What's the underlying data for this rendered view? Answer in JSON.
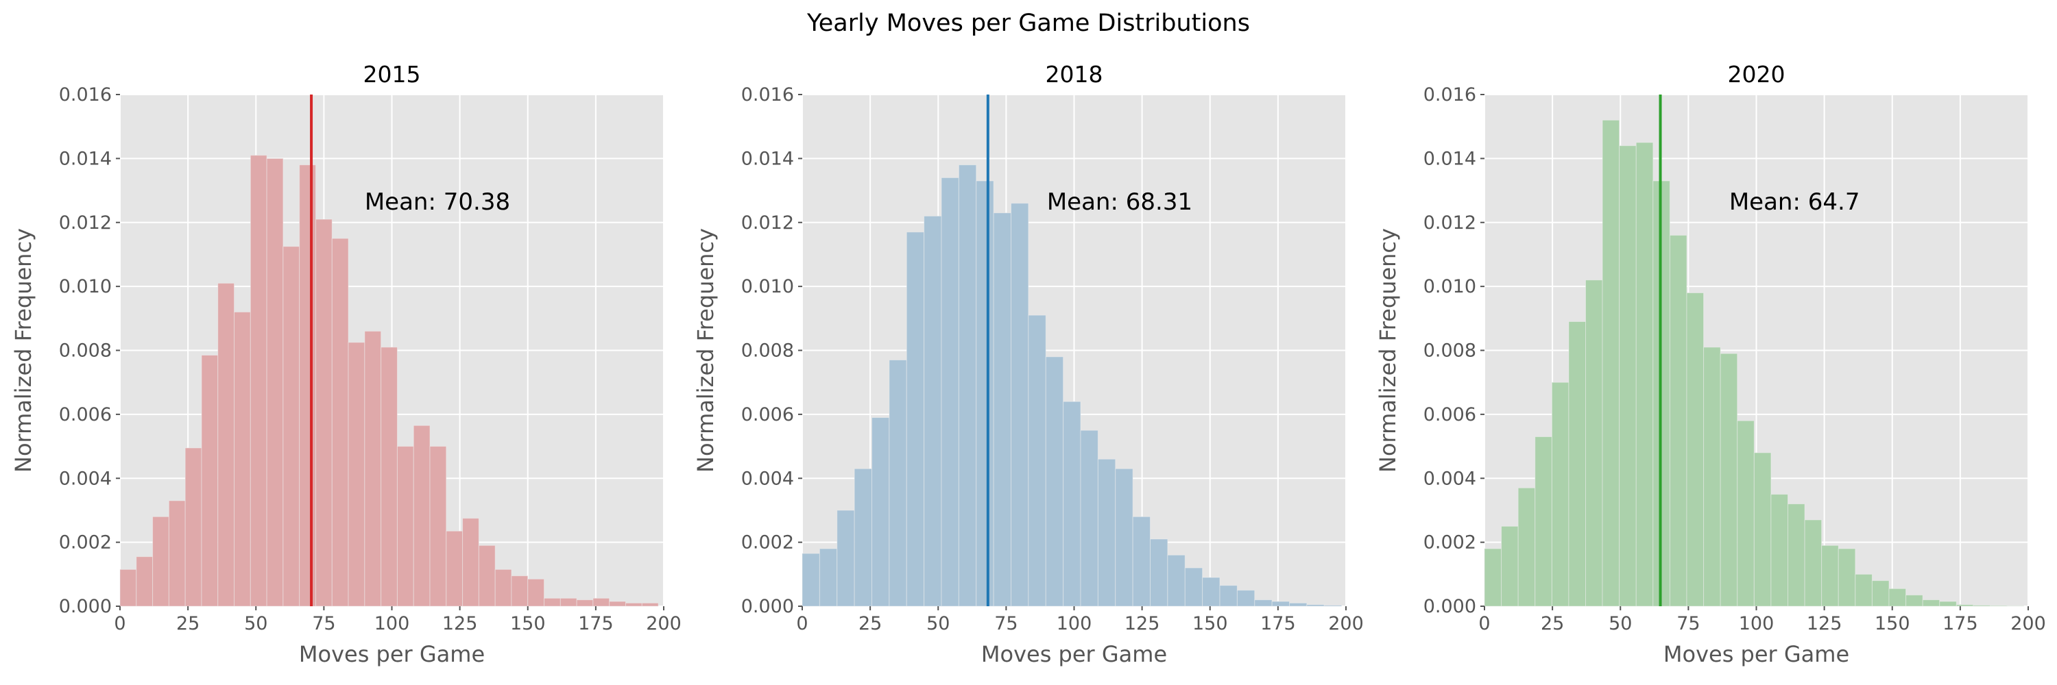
{
  "figure": {
    "title": "Yearly Moves per Game Distributions"
  },
  "chart_data": [
    {
      "type": "bar",
      "title": "2015",
      "xlabel": "Moves per Game",
      "ylabel": "Normalized Frequency",
      "xlim": [
        0,
        200
      ],
      "ylim": [
        0,
        0.016
      ],
      "xticks": [
        "0",
        "25",
        "50",
        "75",
        "100",
        "125",
        "150",
        "175",
        "200"
      ],
      "yticks": [
        "0.000",
        "0.002",
        "0.004",
        "0.006",
        "0.008",
        "0.010",
        "0.012",
        "0.014",
        "0.016"
      ],
      "grid": true,
      "bin_width": 6,
      "bin_starts": [
        0,
        6,
        12,
        18,
        24,
        30,
        36,
        42,
        48,
        54,
        60,
        66,
        72,
        78,
        84,
        90,
        96,
        102,
        108,
        114,
        120,
        126,
        132,
        138,
        144,
        150,
        156,
        162,
        168,
        174,
        180,
        186,
        192
      ],
      "values": [
        0.00115,
        0.00155,
        0.0028,
        0.0033,
        0.00495,
        0.00785,
        0.0101,
        0.0092,
        0.0141,
        0.014,
        0.01125,
        0.0138,
        0.0121,
        0.0115,
        0.00825,
        0.0086,
        0.0081,
        0.005,
        0.00565,
        0.005,
        0.00235,
        0.00275,
        0.0019,
        0.00115,
        0.00095,
        0.00085,
        0.00025,
        0.00025,
        0.0002,
        0.00025,
        0.00015,
        0.0001,
        0.0001
      ],
      "mean": 70.38,
      "mean_label": "Mean: 70.38",
      "bar_color": "#dfa9aa",
      "line_color": "#d62728"
    },
    {
      "type": "bar",
      "title": "2018",
      "xlabel": "Moves per Game",
      "ylabel": "Normalized Frequency",
      "xlim": [
        0,
        200
      ],
      "ylim": [
        0,
        0.016
      ],
      "xticks": [
        "0",
        "25",
        "50",
        "75",
        "100",
        "125",
        "150",
        "175",
        "200"
      ],
      "yticks": [
        "0.000",
        "0.002",
        "0.004",
        "0.006",
        "0.008",
        "0.010",
        "0.012",
        "0.014",
        "0.016"
      ],
      "grid": true,
      "bin_width": 6.4,
      "bin_starts": [
        0,
        6.4,
        12.8,
        19.2,
        25.6,
        32,
        38.4,
        44.8,
        51.2,
        57.6,
        64,
        70.4,
        76.8,
        83.2,
        89.6,
        96,
        102.4,
        108.8,
        115.2,
        121.6,
        128,
        134.4,
        140.8,
        147.2,
        153.6,
        160,
        166.4,
        172.8,
        179.2,
        185.6,
        192
      ],
      "values": [
        0.00165,
        0.0018,
        0.003,
        0.0043,
        0.0059,
        0.0077,
        0.0117,
        0.0122,
        0.0134,
        0.0138,
        0.0133,
        0.0123,
        0.0126,
        0.0091,
        0.0078,
        0.0064,
        0.0055,
        0.0046,
        0.0043,
        0.0028,
        0.0021,
        0.0016,
        0.0012,
        0.0009,
        0.00065,
        0.0005,
        0.0002,
        0.00015,
        0.0001,
        5e-05,
        3e-05
      ],
      "mean": 68.31,
      "mean_label": "Mean: 68.31",
      "bar_color": "#a9c3d6",
      "line_color": "#1f77b4"
    },
    {
      "type": "bar",
      "title": "2020",
      "xlabel": "Moves per Game",
      "ylabel": "Normalized Frequency",
      "xlim": [
        0,
        200
      ],
      "ylim": [
        0,
        0.016
      ],
      "xticks": [
        "0",
        "25",
        "50",
        "75",
        "100",
        "125",
        "150",
        "175",
        "200"
      ],
      "yticks": [
        "0.000",
        "0.002",
        "0.004",
        "0.006",
        "0.008",
        "0.010",
        "0.012",
        "0.014",
        "0.016"
      ],
      "grid": true,
      "bin_width": 6.2,
      "bin_starts": [
        0,
        6.2,
        12.4,
        18.6,
        24.8,
        31,
        37.2,
        43.4,
        49.6,
        55.8,
        62,
        68.2,
        74.4,
        80.6,
        86.8,
        93,
        99.2,
        105.4,
        111.6,
        117.8,
        124,
        130.2,
        136.4,
        142.6,
        148.8,
        155,
        161.2,
        167.4,
        173.6,
        179.8,
        186,
        192.2
      ],
      "values": [
        0.0018,
        0.0025,
        0.0037,
        0.0053,
        0.007,
        0.0089,
        0.0102,
        0.0152,
        0.0144,
        0.0145,
        0.0133,
        0.0116,
        0.0098,
        0.0081,
        0.0079,
        0.0058,
        0.0048,
        0.0035,
        0.0032,
        0.0027,
        0.0019,
        0.0018,
        0.001,
        0.0008,
        0.00055,
        0.00035,
        0.0002,
        0.00015,
        5e-05,
        3e-05,
        2e-05,
        1e-05
      ],
      "mean": 64.7,
      "mean_label": "Mean: 64.7",
      "bar_color": "#abd1ab",
      "line_color": "#2ca02c"
    }
  ]
}
